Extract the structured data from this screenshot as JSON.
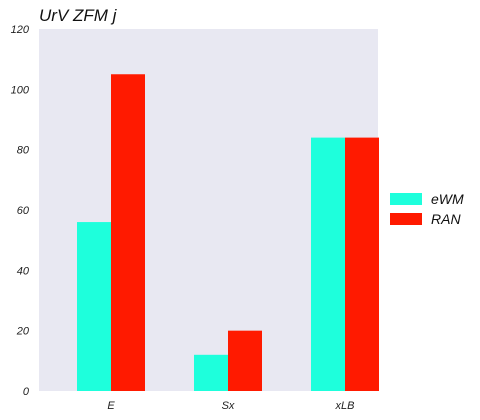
{
  "chart_data": {
    "type": "bar",
    "title": "UrV ZFM j",
    "xlabel": "",
    "ylabel": "",
    "categories": [
      "E",
      "Sx",
      "xLB"
    ],
    "series": [
      {
        "name": "eWM",
        "values": [
          56,
          12,
          84
        ],
        "color": "#1effdc"
      },
      {
        "name": "RAN",
        "values": [
          105,
          20,
          84
        ],
        "color": "#ff1a00"
      }
    ],
    "ylim": [
      0,
      120
    ],
    "yticks": [
      0,
      20,
      40,
      60,
      80,
      100,
      120
    ],
    "grid": false,
    "legend": "right",
    "plot_background": "#e8e8f2"
  }
}
